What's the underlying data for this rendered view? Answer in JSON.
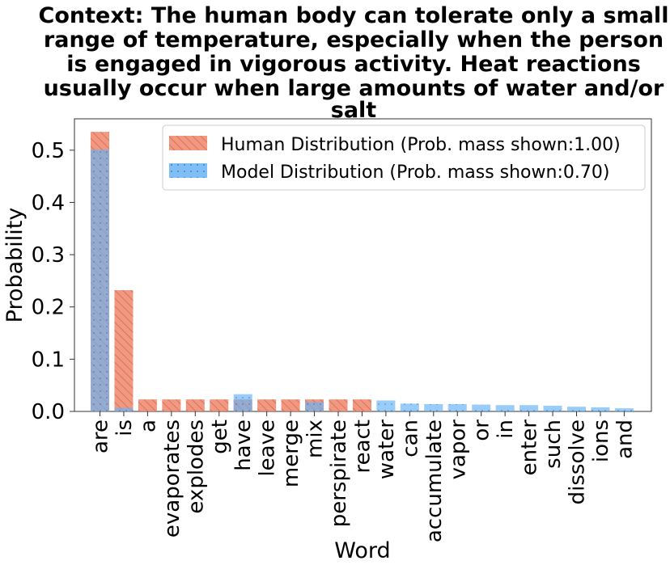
{
  "chart_data": {
    "type": "bar",
    "title_lines": [
      "Context: The human body can tolerate only a small",
      "range of temperature, especially when the person",
      "is engaged in vigorous activity. Heat reactions",
      "usually occur when large amounts of water and/or",
      "salt"
    ],
    "xlabel": "Word",
    "ylabel": "Probability",
    "ylim": [
      0,
      0.56
    ],
    "yticks": [
      0.0,
      0.1,
      0.2,
      0.3,
      0.4,
      0.5
    ],
    "ytick_labels": [
      "0.0",
      "0.1",
      "0.2",
      "0.3",
      "0.4",
      "0.5"
    ],
    "categories": [
      "are",
      "is",
      "a",
      "evaporates",
      "explodes",
      "get",
      "have",
      "leave",
      "merge",
      "mix",
      "perspirate",
      "react",
      "water",
      "can",
      "accumulate",
      "vapor",
      "or",
      "in",
      "enter",
      "such",
      "dissolve",
      "ions",
      "and"
    ],
    "series": [
      {
        "name": "Human Distribution",
        "legend_label": "Human Distribution (Prob. mass shown:1.00)",
        "color": "#f0866a",
        "hatch": "diagonal",
        "values": [
          0.535,
          0.232,
          0.023,
          0.023,
          0.023,
          0.023,
          0.023,
          0.023,
          0.023,
          0.023,
          0.023,
          0.023,
          0,
          0,
          0,
          0,
          0,
          0,
          0,
          0,
          0,
          0,
          0
        ]
      },
      {
        "name": "Model Distribution",
        "legend_label": "Model Distribution (Prob. mass shown:0.70)",
        "color": "#6ab4f5",
        "hatch": "dots",
        "values": [
          0.501,
          0.007,
          0,
          0,
          0,
          0,
          0.033,
          0,
          0,
          0.018,
          0,
          0,
          0.021,
          0.015,
          0.014,
          0.014,
          0.013,
          0.012,
          0.012,
          0.011,
          0.009,
          0.008,
          0.006
        ]
      }
    ],
    "legend_position": "top-right"
  }
}
